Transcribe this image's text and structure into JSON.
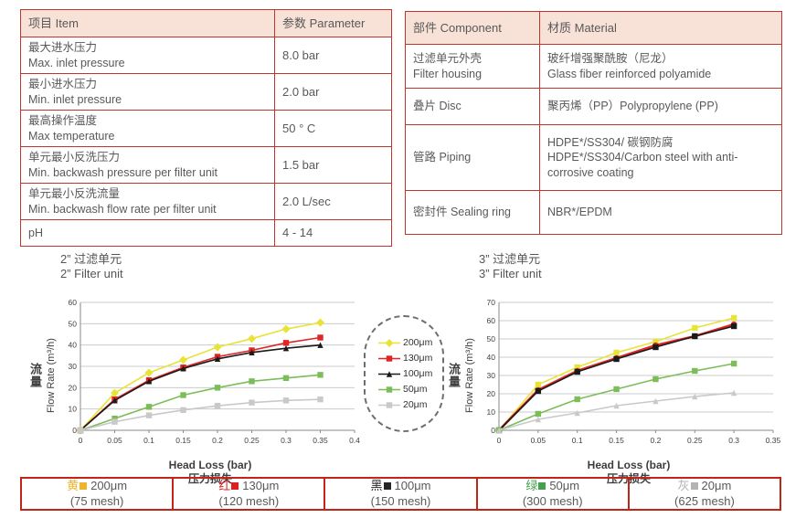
{
  "spec_table": {
    "headers": [
      "项目 Item",
      "参数 Parameter"
    ],
    "rows": [
      {
        "zh": "最大进水压力",
        "en": "Max. inlet pressure",
        "value": "8.0 bar"
      },
      {
        "zh": "最小进水压力",
        "en": "Min. inlet pressure",
        "value": "2.0 bar"
      },
      {
        "zh": "最高操作温度",
        "en": "Max temperature",
        "value": "50 ° C"
      },
      {
        "zh": "单元最小反洗压力",
        "en": "Min. backwash pressure per filter unit",
        "value": "1.5 bar"
      },
      {
        "zh": "单元最小反洗流量",
        "en": "Min. backwash flow rate per filter unit",
        "value": "2.0 L/sec"
      },
      {
        "zh": "pH",
        "en": "",
        "value": "4 - 14"
      }
    ]
  },
  "material_table": {
    "headers": [
      "部件 Component",
      "材质 Material"
    ],
    "rows": [
      {
        "zh": "过滤单元外壳",
        "en": "Filter housing",
        "mat_zh": "玻纤增强聚酰胺（尼龙）",
        "mat_en": "Glass fiber reinforced polyamide"
      },
      {
        "zh": "叠片 Disc",
        "en": "",
        "mat_zh": "聚丙烯（PP）Polypropylene (PP)",
        "mat_en": ""
      },
      {
        "zh": "管路 Piping",
        "en": "",
        "mat_zh": "HDPE*/SS304/ 碳钢防腐",
        "mat_en": "HDPE*/SS304/Carbon steel with anti-corrosive coating"
      },
      {
        "zh": "密封件 Sealing ring",
        "en": "",
        "mat_zh": "NBR*/EPDM",
        "mat_en": ""
      }
    ]
  },
  "chart_data": [
    {
      "type": "line",
      "title_zh": "2”  过滤单元",
      "title_en": "2”  Filter unit",
      "xlabel": "Head Loss (bar)",
      "xlabel_zh": "压力损失",
      "ylabel_zh": "流量",
      "ylabel": "Flow Rate (m³/h)",
      "xlim": [
        0,
        0.4
      ],
      "ylim": [
        0,
        60
      ],
      "xtick_step": 0.05,
      "ytick_step": 10,
      "grid": "horizontal",
      "x": [
        0,
        0.05,
        0.1,
        0.15,
        0.2,
        0.25,
        0.3,
        0.35
      ],
      "series": [
        {
          "name": "200μm",
          "color": "#e8e337",
          "marker": "diamond",
          "line_width": 1.6,
          "values": [
            0,
            17.5,
            27,
            33,
            39,
            43,
            47.5,
            50.5
          ]
        },
        {
          "name": "130μm",
          "color": "#e02525",
          "marker": "square",
          "line_width": 1.6,
          "values": [
            0,
            14.5,
            23.5,
            29.5,
            34.5,
            37.5,
            41,
            43.5
          ]
        },
        {
          "name": "100μm",
          "color": "#1a1a1a",
          "marker": "triangle",
          "line_width": 1.6,
          "values": [
            0,
            14,
            23,
            29,
            33.5,
            36.5,
            38.5,
            40
          ]
        },
        {
          "name": "50μm",
          "color": "#7cbd59",
          "marker": "square",
          "line_width": 1.6,
          "values": [
            0,
            5.5,
            11,
            16.5,
            20,
            23,
            24.5,
            26
          ]
        },
        {
          "name": "20μm",
          "color": "#c9c9c9",
          "marker": "square",
          "line_width": 1.6,
          "values": [
            0,
            4,
            7,
            9.5,
            11.5,
            13,
            14,
            14.5
          ]
        }
      ]
    },
    {
      "type": "line",
      "title_zh": "3”  过滤单元",
      "title_en": "3”  Filter unit",
      "xlabel": "Head Loss (bar)",
      "xlabel_zh": "压力损失",
      "ylabel_zh": "流量",
      "ylabel": "Flow Rate (m³/h)",
      "xlim": [
        0,
        0.35
      ],
      "ylim": [
        0,
        70
      ],
      "xtick_step": 0.05,
      "ytick_step": 10,
      "grid": "horizontal",
      "x": [
        0,
        0.05,
        0.1,
        0.15,
        0.2,
        0.25,
        0.3
      ],
      "series": [
        {
          "name": "200μm",
          "color": "#e8e337",
          "marker": "square",
          "line_width": 1.6,
          "values": [
            0,
            25,
            34.5,
            42.5,
            48.5,
            56,
            61.5
          ]
        },
        {
          "name": "130μm",
          "color": "#e02525",
          "marker": "circle",
          "line_width": 2.6,
          "values": [
            0,
            22,
            32.5,
            39.5,
            46.5,
            51.5,
            58
          ]
        },
        {
          "name": "100μm",
          "color": "#1a1a1a",
          "marker": "square",
          "line_width": 1.6,
          "values": [
            0,
            21.5,
            32,
            39,
            45.5,
            51.5,
            57
          ]
        },
        {
          "name": "50μm",
          "color": "#7cbd59",
          "marker": "square",
          "line_width": 1.6,
          "values": [
            0,
            9,
            17,
            22.5,
            28,
            32.5,
            36.5
          ]
        },
        {
          "name": "20μm",
          "color": "#c9c9c9",
          "marker": "triangle",
          "line_width": 1.6,
          "values": [
            0,
            6,
            9.5,
            13.5,
            16,
            18.5,
            20.5
          ]
        }
      ]
    }
  ],
  "chart_legend": {
    "items": [
      {
        "label": "200μm",
        "color": "#e8e337",
        "marker": "diamond"
      },
      {
        "label": "130μm",
        "color": "#e02525",
        "marker": "square"
      },
      {
        "label": "100μm",
        "color": "#1a1a1a",
        "marker": "triangle"
      },
      {
        "label": "50μm",
        "color": "#7cbd59",
        "marker": "square"
      },
      {
        "label": "20μm",
        "color": "#c9c9c9",
        "marker": "square"
      }
    ]
  },
  "bottom_legend": {
    "cells": [
      {
        "color_name": "黄",
        "color": "#f0b429",
        "size": "200μm",
        "mesh": "(75 mesh)"
      },
      {
        "color_name": "红",
        "color": "#e02020",
        "size": "130μm",
        "mesh": "(120 mesh)"
      },
      {
        "color_name": "黑",
        "color": "#262626",
        "size": "100μm",
        "mesh": "(150 mesh)"
      },
      {
        "color_name": "绿",
        "color": "#44a14a",
        "size": "50μm",
        "mesh": "(300 mesh)"
      },
      {
        "color_name": "灰",
        "color": "#b3b3b3",
        "size": "20μm",
        "mesh": "(625 mesh)"
      }
    ]
  }
}
